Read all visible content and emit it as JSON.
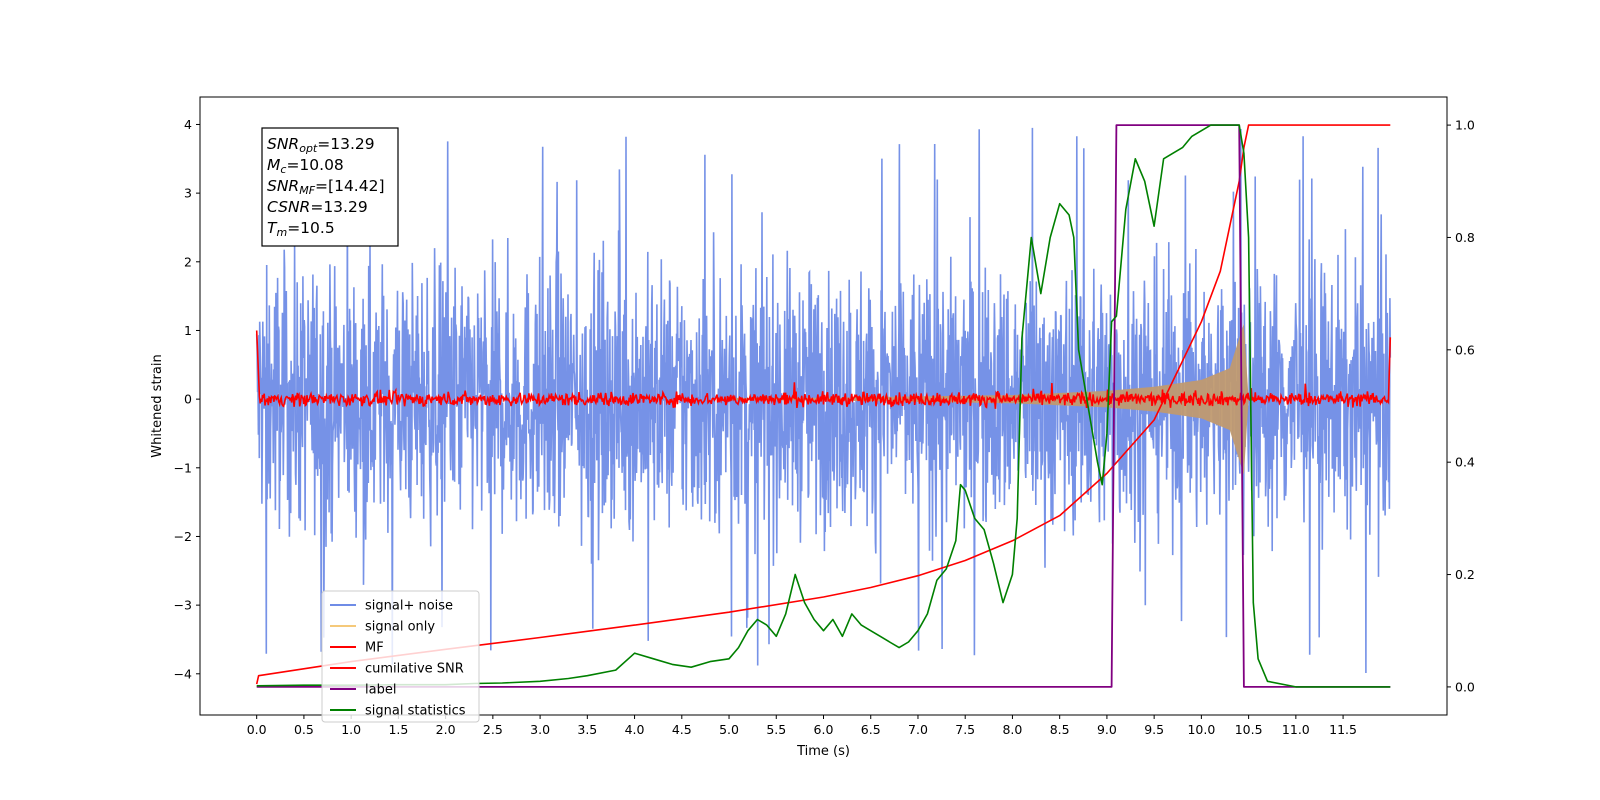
{
  "chart_data": {
    "type": "line",
    "xlabel": "Time (s)",
    "ylabel": "Whitened strain",
    "xlim": [
      -0.6,
      12.6
    ],
    "ylim": [
      -4.6,
      4.4
    ],
    "y2lim": [
      -0.05,
      1.05
    ],
    "grid": false,
    "legend_position": "lower-left",
    "xticks": [
      "0.0",
      "0.5",
      "1.0",
      "1.5",
      "2.0",
      "2.5",
      "3.0",
      "3.5",
      "4.0",
      "4.5",
      "5.0",
      "5.5",
      "6.0",
      "6.5",
      "7.0",
      "7.5",
      "8.0",
      "8.5",
      "9.0",
      "9.5",
      "10.0",
      "10.5",
      "11.0",
      "11.5"
    ],
    "yticks": [
      "4",
      "3",
      "2",
      "1",
      "0",
      "−1",
      "−2",
      "−3",
      "−4"
    ],
    "y2ticks": [
      "1.0",
      "0.8",
      "0.6",
      "0.4",
      "0.2",
      "0.0"
    ],
    "legend": [
      "signal+ noise",
      "signal only",
      "MF",
      "cumilative SNR",
      "label",
      "signal statistics"
    ],
    "annotation": [
      {
        "sym": "SNR",
        "sub": "opt",
        "val": "=13.29"
      },
      {
        "sym": "M",
        "sub": "c",
        "val": "=10.08"
      },
      {
        "sym": "SNR",
        "sub": "MF",
        "val": "=[14.42]"
      },
      {
        "sym": "CSNR",
        "sub": "",
        "val": "=13.29"
      },
      {
        "sym": "T",
        "sub": "m",
        "val": "=10.5"
      }
    ],
    "colors": {
      "signal_noise": "#6f8ce6",
      "signal_only": "#f5c97a",
      "mf": "#ff0000",
      "cumulative_snr": "#ff0000",
      "label": "#800080",
      "signal_statistics": "#008000"
    },
    "series": [
      {
        "name": "signal+ noise",
        "axis": "left",
        "noise_amplitude_typical": 1.0,
        "noise_peak": 4.0,
        "x_range": [
          0.0,
          12.0
        ]
      },
      {
        "name": "signal only",
        "axis": "left",
        "x": [
          0.0,
          6.0,
          8.0,
          9.0,
          9.5,
          10.0,
          10.3,
          10.45,
          10.5
        ],
        "envelope": [
          0.005,
          0.02,
          0.06,
          0.12,
          0.18,
          0.28,
          0.45,
          1.1,
          0.0
        ]
      },
      {
        "name": "MF",
        "axis": "left",
        "noise_amplitude": 0.05,
        "x_range": [
          0.0,
          12.0
        ],
        "start_value": 1.0,
        "end_value": 0.9
      },
      {
        "name": "cumilative SNR",
        "axis": "right",
        "x": [
          0.0,
          0.02,
          1.0,
          2.0,
          3.0,
          4.0,
          5.0,
          6.0,
          6.5,
          7.0,
          7.5,
          8.0,
          8.5,
          9.0,
          9.5,
          10.0,
          10.2,
          10.4,
          10.45,
          10.5,
          12.0
        ],
        "y": [
          0.005,
          0.02,
          0.045,
          0.067,
          0.088,
          0.11,
          0.133,
          0.16,
          0.177,
          0.198,
          0.225,
          0.26,
          0.305,
          0.38,
          0.475,
          0.65,
          0.74,
          0.9,
          0.96,
          1.0,
          1.0
        ]
      },
      {
        "name": "label",
        "axis": "right",
        "x": [
          0.0,
          9.05,
          9.1,
          10.4,
          10.45,
          12.0
        ],
        "y": [
          0.0,
          0.0,
          1.0,
          1.0,
          0.0,
          0.0
        ]
      },
      {
        "name": "signal statistics",
        "axis": "right",
        "x": [
          0.0,
          0.5,
          1.0,
          1.5,
          2.0,
          2.3,
          2.6,
          3.0,
          3.3,
          3.5,
          3.8,
          4.0,
          4.2,
          4.4,
          4.6,
          4.8,
          5.0,
          5.1,
          5.2,
          5.3,
          5.4,
          5.5,
          5.6,
          5.7,
          5.8,
          5.9,
          6.0,
          6.1,
          6.2,
          6.3,
          6.4,
          6.5,
          6.6,
          6.7,
          6.8,
          6.9,
          7.0,
          7.1,
          7.2,
          7.3,
          7.4,
          7.45,
          7.5,
          7.6,
          7.7,
          7.8,
          7.9,
          8.0,
          8.05,
          8.1,
          8.2,
          8.3,
          8.4,
          8.5,
          8.6,
          8.65,
          8.7,
          8.8,
          8.9,
          8.95,
          9.0,
          9.05,
          9.1,
          9.2,
          9.3,
          9.4,
          9.5,
          9.6,
          9.7,
          9.8,
          9.9,
          10.0,
          10.1,
          10.2,
          10.3,
          10.4,
          10.45,
          10.5,
          10.55,
          10.6,
          10.7,
          11.0,
          12.0
        ],
        "y": [
          0.002,
          0.003,
          0.003,
          0.004,
          0.004,
          0.006,
          0.007,
          0.01,
          0.015,
          0.02,
          0.03,
          0.06,
          0.05,
          0.04,
          0.035,
          0.045,
          0.05,
          0.07,
          0.1,
          0.12,
          0.11,
          0.09,
          0.13,
          0.2,
          0.15,
          0.12,
          0.1,
          0.12,
          0.09,
          0.13,
          0.11,
          0.1,
          0.09,
          0.08,
          0.07,
          0.08,
          0.1,
          0.13,
          0.19,
          0.21,
          0.26,
          0.36,
          0.35,
          0.3,
          0.28,
          0.22,
          0.15,
          0.2,
          0.3,
          0.62,
          0.8,
          0.7,
          0.8,
          0.86,
          0.84,
          0.8,
          0.6,
          0.5,
          0.4,
          0.36,
          0.45,
          0.65,
          0.66,
          0.85,
          0.94,
          0.9,
          0.82,
          0.94,
          0.95,
          0.96,
          0.98,
          0.99,
          1.0,
          1.0,
          1.0,
          1.0,
          0.95,
          0.8,
          0.15,
          0.05,
          0.01,
          0.0,
          0.0
        ]
      }
    ]
  }
}
